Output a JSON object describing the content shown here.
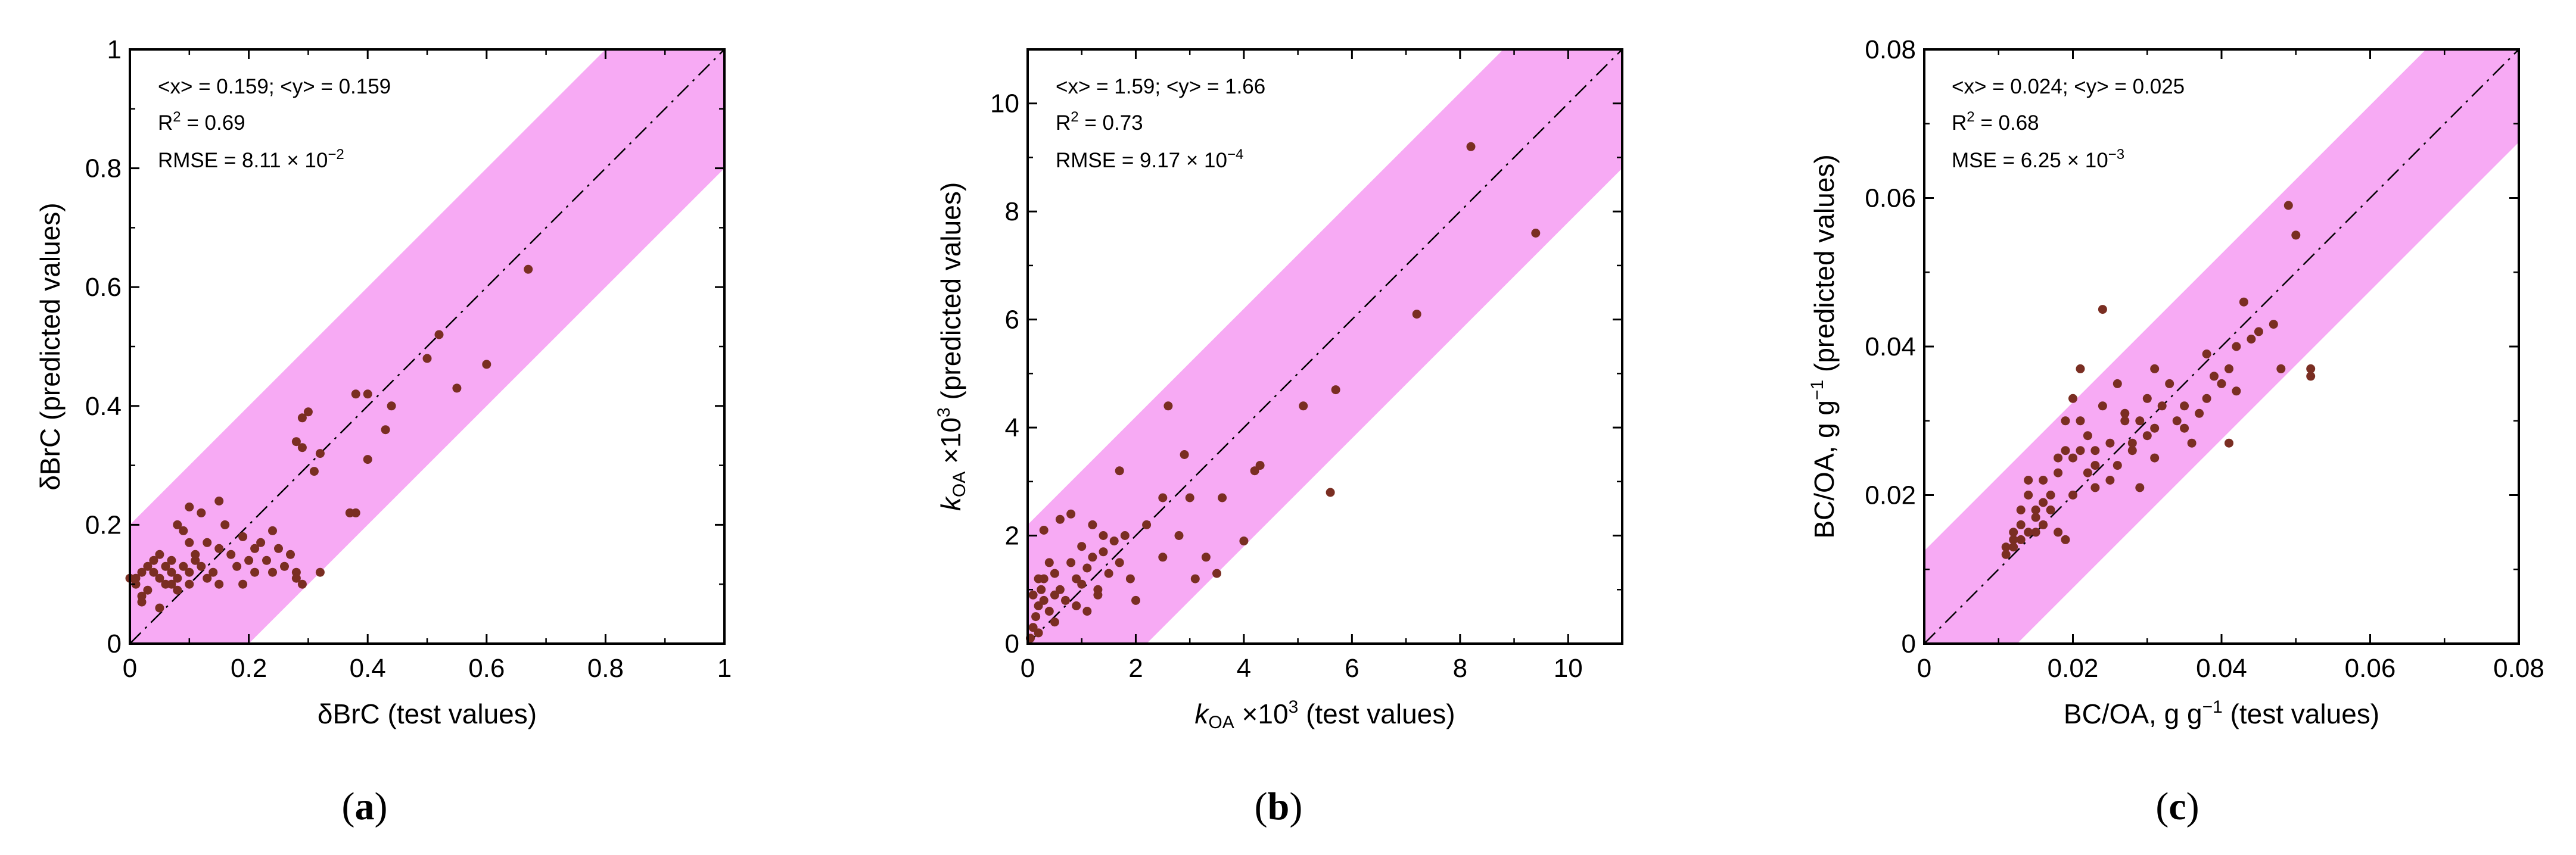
{
  "colors": {
    "band": "#f7aaf4",
    "points": "#7a2e22",
    "frame": "#000000",
    "diagonal": "#000000"
  },
  "chart_data": [
    {
      "type": "scatter",
      "panel_label": "a",
      "xlabel": "δBrC (test values)",
      "ylabel": "δBrC (predicted values)",
      "xlim": [
        0,
        1
      ],
      "ylim": [
        0,
        1
      ],
      "xticks": [
        0,
        0.2,
        0.4,
        0.6,
        0.8,
        1
      ],
      "yticks": [
        0,
        0.2,
        0.4,
        0.6,
        0.8,
        1
      ],
      "xtick_labels": [
        "0",
        "0.2",
        "0.4",
        "0.6",
        "0.8",
        "1"
      ],
      "ytick_labels": [
        "0",
        "0.2",
        "0.4",
        "0.6",
        "0.8",
        "1"
      ],
      "band_halfwidth": 0.2,
      "stats": {
        "means": "<x> = 0.159; <y> = 0.159",
        "r2_label": "R",
        "r2_exp": "2",
        "r2_value": " = 0.69",
        "err_label": "RMSE = 8.11 × 10",
        "err_exp": "−2"
      },
      "points": [
        [
          0.01,
          0.11
        ],
        [
          0.02,
          0.12
        ],
        [
          0.01,
          0.1
        ],
        [
          0.0,
          0.11
        ],
        [
          0.03,
          0.09
        ],
        [
          0.02,
          0.07
        ],
        [
          0.04,
          0.12
        ],
        [
          0.03,
          0.13
        ],
        [
          0.04,
          0.14
        ],
        [
          0.05,
          0.11
        ],
        [
          0.06,
          0.1
        ],
        [
          0.05,
          0.15
        ],
        [
          0.06,
          0.13
        ],
        [
          0.07,
          0.1
        ],
        [
          0.07,
          0.12
        ],
        [
          0.08,
          0.09
        ],
        [
          0.08,
          0.11
        ],
        [
          0.09,
          0.13
        ],
        [
          0.1,
          0.1
        ],
        [
          0.1,
          0.12
        ],
        [
          0.11,
          0.14
        ],
        [
          0.1,
          0.17
        ],
        [
          0.12,
          0.13
        ],
        [
          0.13,
          0.11
        ],
        [
          0.14,
          0.12
        ],
        [
          0.15,
          0.16
        ],
        [
          0.16,
          0.2
        ],
        [
          0.17,
          0.15
        ],
        [
          0.18,
          0.13
        ],
        [
          0.19,
          0.18
        ],
        [
          0.2,
          0.14
        ],
        [
          0.21,
          0.12
        ],
        [
          0.22,
          0.17
        ],
        [
          0.23,
          0.14
        ],
        [
          0.24,
          0.19
        ],
        [
          0.25,
          0.16
        ],
        [
          0.26,
          0.13
        ],
        [
          0.27,
          0.15
        ],
        [
          0.28,
          0.12
        ],
        [
          0.28,
          0.34
        ],
        [
          0.29,
          0.33
        ],
        [
          0.29,
          0.38
        ],
        [
          0.3,
          0.39
        ],
        [
          0.31,
          0.29
        ],
        [
          0.32,
          0.32
        ],
        [
          0.28,
          0.11
        ],
        [
          0.29,
          0.1
        ],
        [
          0.32,
          0.12
        ],
        [
          0.37,
          0.22
        ],
        [
          0.38,
          0.22
        ],
        [
          0.38,
          0.42
        ],
        [
          0.4,
          0.31
        ],
        [
          0.4,
          0.42
        ],
        [
          0.43,
          0.36
        ],
        [
          0.44,
          0.4
        ],
        [
          0.5,
          0.48
        ],
        [
          0.52,
          0.52
        ],
        [
          0.55,
          0.43
        ],
        [
          0.6,
          0.47
        ],
        [
          0.67,
          0.63
        ],
        [
          0.12,
          0.22
        ],
        [
          0.1,
          0.23
        ],
        [
          0.15,
          0.24
        ],
        [
          0.09,
          0.19
        ],
        [
          0.13,
          0.17
        ],
        [
          0.11,
          0.15
        ],
        [
          0.05,
          0.06
        ],
        [
          0.15,
          0.1
        ],
        [
          0.19,
          0.1
        ],
        [
          0.21,
          0.16
        ],
        [
          0.24,
          0.12
        ],
        [
          0.02,
          0.08
        ],
        [
          0.07,
          0.14
        ],
        [
          0.08,
          0.2
        ]
      ]
    },
    {
      "type": "scatter",
      "panel_label": "b",
      "xlabel_var": "k",
      "xlabel_sub": "OA",
      "xlabel_mid": " ×10",
      "xlabel_exp": "3",
      "xlabel_rest": " (test values)",
      "ylabel_var": "k",
      "ylabel_sub": "OA",
      "ylabel_mid": " ×10",
      "ylabel_exp": "3",
      "ylabel_rest": " (predicted values)",
      "xlim": [
        0,
        11
      ],
      "ylim": [
        0,
        11
      ],
      "xticks": [
        0,
        2,
        4,
        6,
        8,
        10
      ],
      "yticks": [
        0,
        2,
        4,
        6,
        8,
        10
      ],
      "xtick_labels": [
        "0",
        "2",
        "4",
        "6",
        "8",
        "10"
      ],
      "ytick_labels": [
        "0",
        "2",
        "4",
        "6",
        "8",
        "10"
      ],
      "band_halfwidth": 2.2,
      "stats": {
        "means": "<x> = 1.59; <y> = 1.66",
        "r2_label": "R",
        "r2_exp": "2",
        "r2_value": " = 0.73",
        "err_label": "RMSE = 9.17 × 10",
        "err_exp": "−4"
      },
      "points": [
        [
          0.05,
          0.1
        ],
        [
          0.1,
          0.3
        ],
        [
          0.15,
          0.5
        ],
        [
          0.2,
          0.7
        ],
        [
          0.1,
          0.9
        ],
        [
          0.25,
          1.0
        ],
        [
          0.3,
          0.8
        ],
        [
          0.4,
          0.6
        ],
        [
          0.5,
          0.9
        ],
        [
          0.3,
          1.2
        ],
        [
          0.2,
          1.2
        ],
        [
          0.5,
          1.3
        ],
        [
          0.6,
          1.0
        ],
        [
          0.7,
          0.8
        ],
        [
          0.8,
          1.5
        ],
        [
          0.9,
          1.2
        ],
        [
          1.0,
          1.8
        ],
        [
          1.1,
          1.4
        ],
        [
          1.2,
          1.6
        ],
        [
          1.3,
          1.0
        ],
        [
          1.4,
          1.7
        ],
        [
          1.5,
          1.3
        ],
        [
          1.6,
          1.9
        ],
        [
          1.7,
          1.5
        ],
        [
          1.8,
          2.0
        ],
        [
          1.9,
          1.2
        ],
        [
          2.0,
          0.8
        ],
        [
          2.2,
          2.2
        ],
        [
          2.5,
          1.6
        ],
        [
          2.6,
          4.4
        ],
        [
          2.8,
          2.0
        ],
        [
          2.9,
          3.5
        ],
        [
          3.0,
          2.7
        ],
        [
          3.1,
          1.2
        ],
        [
          3.3,
          1.6
        ],
        [
          3.5,
          1.3
        ],
        [
          3.6,
          2.7
        ],
        [
          4.0,
          1.9
        ],
        [
          4.2,
          3.2
        ],
        [
          4.3,
          3.3
        ],
        [
          5.1,
          4.4
        ],
        [
          5.6,
          2.8
        ],
        [
          5.7,
          4.7
        ],
        [
          7.2,
          6.1
        ],
        [
          8.2,
          9.2
        ],
        [
          9.4,
          7.6
        ],
        [
          0.6,
          2.3
        ],
        [
          0.8,
          2.4
        ],
        [
          1.2,
          2.2
        ],
        [
          1.4,
          2.0
        ],
        [
          1.7,
          3.2
        ],
        [
          2.5,
          2.7
        ],
        [
          0.4,
          1.5
        ],
        [
          0.9,
          0.7
        ],
        [
          1.1,
          0.6
        ],
        [
          0.3,
          2.1
        ],
        [
          0.5,
          0.4
        ],
        [
          0.2,
          0.2
        ],
        [
          1.0,
          1.1
        ],
        [
          1.3,
          0.9
        ]
      ]
    },
    {
      "type": "scatter",
      "panel_label": "c",
      "xlabel_main": "BC/OA, g g",
      "xlabel_exp": "−1",
      "xlabel_rest": " (test values)",
      "ylabel_main": "BC/OA, g g",
      "ylabel_exp": "−1",
      "ylabel_rest": " (predicted values)",
      "xlim": [
        0,
        0.08
      ],
      "ylim": [
        0,
        0.08
      ],
      "xticks": [
        0,
        0.02,
        0.04,
        0.06,
        0.08
      ],
      "yticks": [
        0,
        0.02,
        0.04,
        0.06,
        0.08
      ],
      "xtick_labels": [
        "0",
        "0.02",
        "0.04",
        "0.06",
        "0.08"
      ],
      "ytick_labels": [
        "0",
        "0.02",
        "0.04",
        "0.06",
        "0.08"
      ],
      "band_halfwidth": 0.0125,
      "stats": {
        "means": "<x> = 0.024; <y> = 0.025",
        "r2_label": "R",
        "r2_exp": "2",
        "r2_value": " = 0.68",
        "err_label": "MSE = 6.25 × 10",
        "err_exp": "−3"
      },
      "points": [
        [
          0.011,
          0.013
        ],
        [
          0.012,
          0.014
        ],
        [
          0.012,
          0.015
        ],
        [
          0.013,
          0.016
        ],
        [
          0.013,
          0.018
        ],
        [
          0.014,
          0.02
        ],
        [
          0.014,
          0.022
        ],
        [
          0.015,
          0.017
        ],
        [
          0.015,
          0.015
        ],
        [
          0.016,
          0.019
        ],
        [
          0.016,
          0.016
        ],
        [
          0.017,
          0.018
        ],
        [
          0.017,
          0.02
        ],
        [
          0.018,
          0.015
        ],
        [
          0.018,
          0.023
        ],
        [
          0.019,
          0.026
        ],
        [
          0.019,
          0.014
        ],
        [
          0.02,
          0.02
        ],
        [
          0.02,
          0.025
        ],
        [
          0.02,
          0.033
        ],
        [
          0.021,
          0.026
        ],
        [
          0.021,
          0.037
        ],
        [
          0.022,
          0.023
        ],
        [
          0.022,
          0.028
        ],
        [
          0.023,
          0.021
        ],
        [
          0.023,
          0.026
        ],
        [
          0.024,
          0.045
        ],
        [
          0.024,
          0.032
        ],
        [
          0.025,
          0.027
        ],
        [
          0.025,
          0.022
        ],
        [
          0.026,
          0.024
        ],
        [
          0.026,
          0.035
        ],
        [
          0.027,
          0.031
        ],
        [
          0.028,
          0.027
        ],
        [
          0.028,
          0.026
        ],
        [
          0.029,
          0.03
        ],
        [
          0.029,
          0.021
        ],
        [
          0.03,
          0.033
        ],
        [
          0.03,
          0.028
        ],
        [
          0.031,
          0.025
        ],
        [
          0.031,
          0.037
        ],
        [
          0.032,
          0.032
        ],
        [
          0.033,
          0.035
        ],
        [
          0.034,
          0.03
        ],
        [
          0.035,
          0.032
        ],
        [
          0.036,
          0.027
        ],
        [
          0.037,
          0.031
        ],
        [
          0.038,
          0.033
        ],
        [
          0.039,
          0.036
        ],
        [
          0.04,
          0.035
        ],
        [
          0.041,
          0.037
        ],
        [
          0.041,
          0.027
        ],
        [
          0.042,
          0.034
        ],
        [
          0.042,
          0.04
        ],
        [
          0.043,
          0.046
        ],
        [
          0.044,
          0.041
        ],
        [
          0.045,
          0.042
        ],
        [
          0.047,
          0.043
        ],
        [
          0.048,
          0.037
        ],
        [
          0.049,
          0.059
        ],
        [
          0.05,
          0.055
        ],
        [
          0.052,
          0.037
        ],
        [
          0.052,
          0.036
        ],
        [
          0.011,
          0.012
        ],
        [
          0.012,
          0.013
        ],
        [
          0.013,
          0.014
        ],
        [
          0.014,
          0.015
        ],
        [
          0.015,
          0.018
        ],
        [
          0.016,
          0.022
        ],
        [
          0.018,
          0.025
        ],
        [
          0.019,
          0.03
        ],
        [
          0.021,
          0.03
        ],
        [
          0.023,
          0.024
        ],
        [
          0.027,
          0.03
        ],
        [
          0.031,
          0.029
        ],
        [
          0.035,
          0.029
        ],
        [
          0.038,
          0.039
        ]
      ]
    }
  ]
}
